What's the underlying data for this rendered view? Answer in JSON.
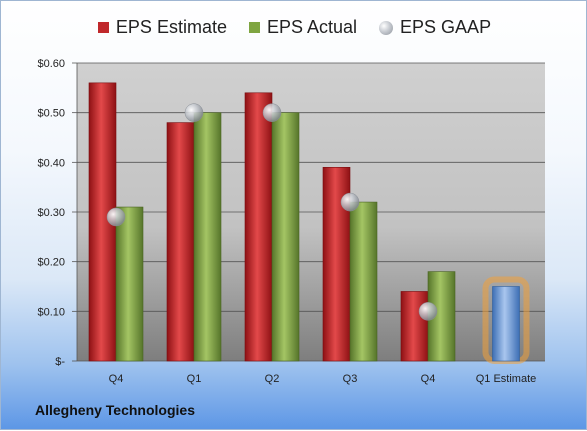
{
  "chart_data": {
    "type": "bar",
    "categories": [
      "Q4",
      "Q1",
      "Q2",
      "Q3",
      "Q4",
      "Q1 Estimate"
    ],
    "series": [
      {
        "name": "EPS Estimate",
        "color": "#c0282b",
        "values": [
          0.56,
          0.48,
          0.54,
          0.39,
          0.14,
          null
        ]
      },
      {
        "name": "EPS Actual",
        "color": "#7fa541",
        "values": [
          0.31,
          0.5,
          0.5,
          0.32,
          0.18,
          null
        ]
      },
      {
        "name": "EPS GAAP",
        "color": "#b9bec6",
        "type": "scatter",
        "values": [
          0.29,
          0.5,
          0.5,
          0.32,
          0.1,
          null
        ]
      }
    ],
    "estimate": {
      "category": "Q1 Estimate",
      "value": 0.15,
      "color": "#6f9ad6",
      "glow": "#f0a13a"
    },
    "yticks": [
      "$-",
      "$0.10",
      "$0.20",
      "$0.30",
      "$0.40",
      "$0.50",
      "$0.60"
    ],
    "ylim": [
      0,
      0.6
    ],
    "grid": true,
    "legend_position": "top"
  },
  "footer": {
    "company": "Allegheny Technologies"
  }
}
